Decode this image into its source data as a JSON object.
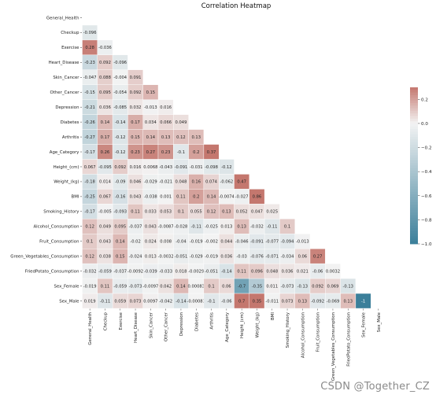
{
  "chart_data": {
    "type": "heatmap",
    "title": "Correlation Heatmap",
    "variables": [
      "General_Health",
      "Checkup",
      "Exercise",
      "Heart_Disease",
      "Skin_Cancer",
      "Other_Cancer",
      "Depression",
      "Diabetes",
      "Arthritis",
      "Age_Category",
      "Height_(cm)",
      "Weight_(kg)",
      "BMI",
      "Smoking_History",
      "Alcohol_Consumption",
      "Fruit_Consumption",
      "Green_Vegetables_Consumption",
      "FriedPotato_Consumption",
      "Sex_Female",
      "Sex_Male"
    ],
    "mask": "upper-triangle",
    "lower_triangle_labels": [
      [],
      [
        "-0.096"
      ],
      [
        "0.28",
        "-0.036"
      ],
      [
        "-0.23",
        "0.092",
        "-0.096"
      ],
      [
        "-0.047",
        "0.088",
        "-0.004",
        "0.091"
      ],
      [
        "-0.15",
        "0.095",
        "-0.054",
        "0.092",
        "0.15"
      ],
      [
        "-0.21",
        "0.036",
        "-0.085",
        "0.032",
        "-0.013",
        "0.016"
      ],
      [
        "-0.26",
        "0.14",
        "-0.14",
        "0.17",
        "0.034",
        "0.066",
        "0.049"
      ],
      [
        "-0.27",
        "0.17",
        "-0.12",
        "0.15",
        "0.14",
        "0.13",
        "0.12",
        "0.13"
      ],
      [
        "-0.17",
        "0.26",
        "-0.12",
        "0.23",
        "0.27",
        "0.23",
        "-0.1",
        "0.2",
        "0.37"
      ],
      [
        "0.067",
        "-0.095",
        "0.092",
        "0.016",
        "0.0068",
        "-0.043",
        "-0.091",
        "-0.031",
        "-0.098",
        "-0.12"
      ],
      [
        "-0.18",
        "0.014",
        "-0.09",
        "0.046",
        "-0.029",
        "-0.021",
        "0.048",
        "0.16",
        "0.074",
        "-0.062",
        "0.47"
      ],
      [
        "-0.25",
        "0.067",
        "-0.16",
        "0.043",
        "-0.038",
        "0.001",
        "0.11",
        "0.2",
        "0.14",
        "-0.0074",
        "-0.027",
        "0.86"
      ],
      [
        "-0.17",
        "-0.005",
        "-0.093",
        "0.11",
        "0.033",
        "0.053",
        "0.1",
        "0.055",
        "0.12",
        "0.13",
        "0.052",
        "0.047",
        "0.025"
      ],
      [
        "0.12",
        "0.049",
        "0.095",
        "-0.037",
        "0.043",
        "-0.0087",
        "-0.028",
        "-0.11",
        "-0.025",
        "0.013",
        "0.13",
        "-0.032",
        "-0.11",
        "0.1"
      ],
      [
        "0.1",
        "0.043",
        "0.14",
        "-0.02",
        "0.024",
        "0.008",
        "-0.04",
        "-0.019",
        "-0.002",
        "0.044",
        "-0.046",
        "-0.091",
        "-0.077",
        "-0.094",
        "-0.013"
      ],
      [
        "0.12",
        "0.038",
        "0.15",
        "-0.024",
        "0.013",
        "-0.0032",
        "-0.051",
        "-0.029",
        "-0.019",
        "0.036",
        "-0.03",
        "-0.076",
        "-0.071",
        "-0.034",
        "0.06",
        "0.27"
      ],
      [
        "-0.032",
        "-0.059",
        "-0.037",
        "-0.0092",
        "-0.039",
        "-0.033",
        "0.018",
        "-0.0029",
        "-0.051",
        "-0.14",
        "0.11",
        "0.096",
        "0.048",
        "0.036",
        "0.021",
        "-0.06",
        "0.0032"
      ],
      [
        "-0.019",
        "0.11",
        "-0.059",
        "-0.073",
        "-0.0097",
        "0.042",
        "0.14",
        "0.00083",
        "0.1",
        "0.06",
        "-0.7",
        "-0.35",
        "0.011",
        "-0.073",
        "-0.13",
        "0.092",
        "0.069",
        "-0.13"
      ],
      [
        "0.019",
        "-0.11",
        "0.059",
        "0.073",
        "0.0097",
        "-0.042",
        "-0.14",
        "-0.00083",
        "-0.1",
        "-0.06",
        "0.7",
        "0.35",
        "-0.011",
        "0.073",
        "0.13",
        "-0.092",
        "-0.069",
        "0.13",
        "-1"
      ]
    ],
    "colorbar": {
      "ticks": [
        "0.2",
        "0.0",
        "−0.2",
        "−0.4",
        "−0.6",
        "−0.8",
        "−1.0"
      ],
      "ylim": [
        -1.0,
        0.3
      ],
      "placement": "right"
    },
    "colors": {
      "negative": "#3b7f9a",
      "neutral": "#f3f3f3",
      "positive": "#c4776e"
    }
  },
  "watermark": "CSDN @Together_CZ"
}
